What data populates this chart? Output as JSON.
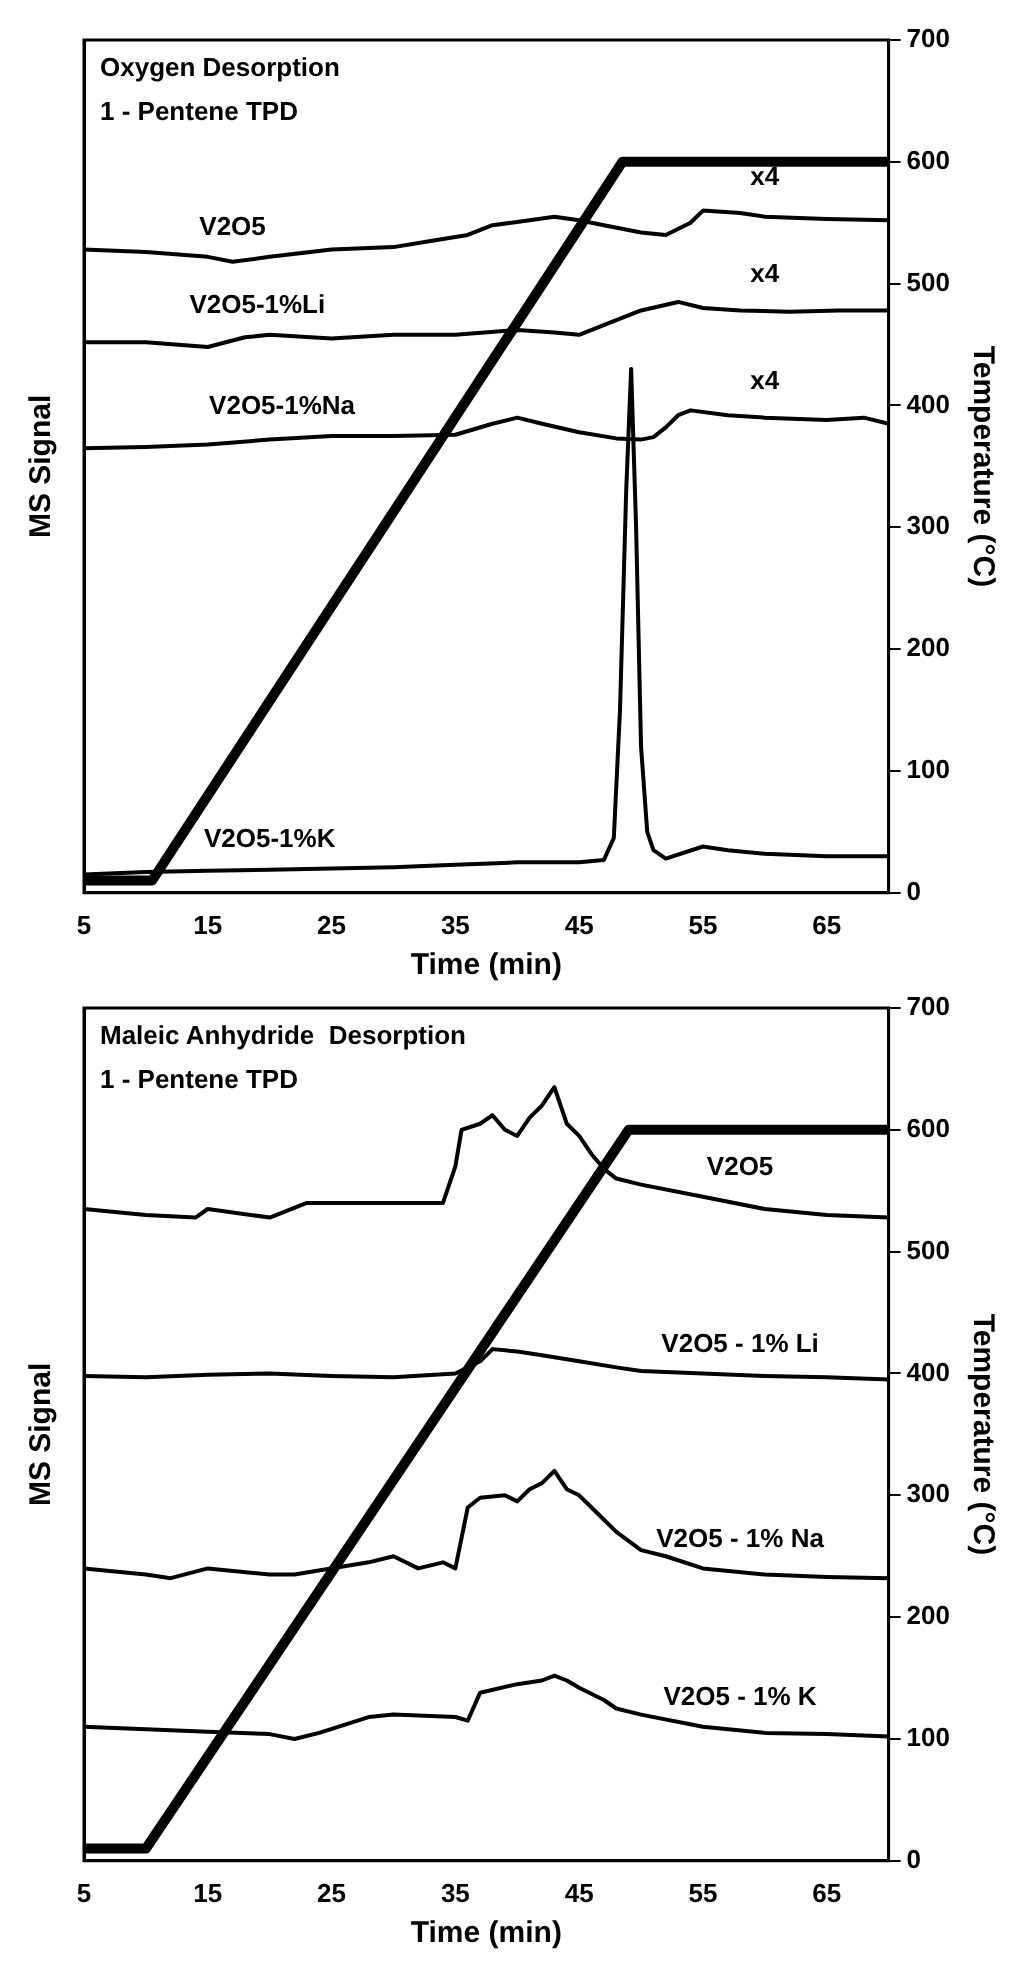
{
  "chart_data": [
    {
      "type": "line",
      "title": "Oxygen Desorption",
      "subtitle": "1 - Pentene TPD",
      "xlabel": "Time (min)",
      "ylabel": "MS Signal",
      "y2label": "Temperature (°C)",
      "xlim": [
        5,
        70
      ],
      "xticks": [
        5,
        15,
        25,
        35,
        45,
        55,
        65
      ],
      "y2lim": [
        0,
        700
      ],
      "y2ticks": [
        0,
        100,
        200,
        300,
        400,
        500,
        600,
        700
      ],
      "grid": false,
      "legend": false,
      "marker": "none",
      "annotations": [
        "x4",
        "x4",
        "x4"
      ],
      "series": [
        {
          "name": "V2O5",
          "color": "#000000",
          "axis": "y2",
          "x": [
            5,
            10,
            15,
            17,
            20,
            25,
            30,
            33,
            36,
            38,
            41,
            43,
            45,
            47,
            50,
            52,
            54,
            55,
            58,
            60,
            65,
            70
          ],
          "values": [
            528,
            526,
            522,
            518,
            522,
            528,
            530,
            535,
            540,
            548,
            552,
            555,
            552,
            548,
            542,
            540,
            550,
            560,
            558,
            555,
            553,
            552
          ]
        },
        {
          "name": "V2O5-1%Li",
          "color": "#000000",
          "axis": "y2",
          "x": [
            5,
            10,
            15,
            18,
            20,
            25,
            30,
            35,
            40,
            43,
            45,
            48,
            50,
            53,
            55,
            58,
            62,
            66,
            70
          ],
          "values": [
            452,
            452,
            448,
            456,
            458,
            455,
            458,
            458,
            462,
            460,
            458,
            470,
            478,
            485,
            480,
            478,
            477,
            478,
            478
          ]
        },
        {
          "name": "V2O5-1%Na",
          "color": "#000000",
          "axis": "y2",
          "x": [
            5,
            10,
            15,
            20,
            25,
            30,
            35,
            38,
            40,
            42,
            45,
            48,
            50,
            51,
            52,
            53,
            54,
            57,
            60,
            65,
            68,
            70
          ],
          "values": [
            365,
            366,
            368,
            372,
            375,
            375,
            376,
            385,
            390,
            385,
            378,
            373,
            372,
            374,
            382,
            392,
            396,
            392,
            390,
            388,
            390,
            385
          ]
        },
        {
          "name": "V2O5-1%K",
          "color": "#000000",
          "axis": "y2",
          "x": [
            5,
            10,
            15,
            20,
            25,
            30,
            35,
            40,
            45,
            47,
            47.8,
            48.3,
            48.8,
            49.2,
            49.6,
            50,
            50.5,
            51,
            52,
            55,
            57,
            60,
            65,
            70
          ],
          "values": [
            15,
            17,
            18,
            19,
            20,
            21,
            23,
            25,
            25,
            27,
            45,
            150,
            330,
            430,
            300,
            120,
            50,
            35,
            28,
            38,
            35,
            32,
            30,
            30
          ]
        },
        {
          "color": "#000000",
          "axis": "y2",
          "x": [
            5,
            10.5,
            48.5,
            70
          ],
          "values": [
            10,
            10,
            600,
            600
          ]
        }
      ]
    },
    {
      "type": "line",
      "title": "Maleic Anhydride  Desorption",
      "subtitle": "1 - Pentene TPD",
      "xlabel": "Time (min)",
      "ylabel": "MS Signal",
      "y2label": "Temperature (°C)",
      "xlim": [
        5,
        70
      ],
      "xticks": [
        5,
        15,
        25,
        35,
        45,
        55,
        65
      ],
      "y2lim": [
        0,
        700
      ],
      "y2ticks": [
        0,
        100,
        200,
        300,
        400,
        500,
        600,
        700
      ],
      "grid": false,
      "legend": false,
      "marker": "none",
      "series": [
        {
          "name": "V2O5",
          "color": "#000000",
          "axis": "y2",
          "x": [
            5,
            10,
            14,
            15,
            20,
            23,
            28,
            34,
            35,
            35.5,
            37,
            38,
            39,
            40,
            41,
            42,
            43,
            44,
            45,
            46,
            47,
            48,
            50,
            55,
            60,
            65,
            70
          ],
          "values": [
            535,
            530,
            528,
            535,
            528,
            540,
            540,
            540,
            570,
            600,
            605,
            612,
            600,
            595,
            610,
            620,
            635,
            605,
            595,
            580,
            568,
            560,
            555,
            545,
            535,
            530,
            528
          ]
        },
        {
          "name": "V2O5 - 1% Li",
          "color": "#000000",
          "axis": "y2",
          "x": [
            5,
            10,
            15,
            20,
            25,
            30,
            35,
            37,
            38,
            40,
            42,
            45,
            48,
            50,
            55,
            60,
            65,
            70
          ],
          "values": [
            398,
            397,
            399,
            400,
            398,
            397,
            400,
            410,
            420,
            418,
            415,
            410,
            405,
            402,
            400,
            398,
            397,
            395
          ]
        },
        {
          "name": "V2O5 - 1% Na",
          "color": "#000000",
          "axis": "y2",
          "x": [
            5,
            10,
            12,
            15,
            20,
            22,
            28,
            30,
            32,
            34,
            35,
            36,
            37,
            39,
            40,
            41,
            42,
            43,
            44,
            45,
            46,
            48,
            50,
            52,
            55,
            60,
            65,
            70
          ],
          "values": [
            240,
            235,
            232,
            240,
            235,
            235,
            245,
            250,
            240,
            245,
            240,
            290,
            298,
            300,
            295,
            305,
            310,
            320,
            305,
            300,
            290,
            270,
            255,
            250,
            240,
            235,
            233,
            232
          ]
        },
        {
          "name": "V2O5 - 1% K",
          "color": "#000000",
          "axis": "y2",
          "x": [
            5,
            10,
            15,
            20,
            22,
            24,
            28,
            30,
            35,
            36,
            37,
            40,
            42,
            43,
            44,
            45,
            47,
            48,
            50,
            55,
            60,
            65,
            70
          ],
          "values": [
            110,
            108,
            106,
            104,
            100,
            105,
            118,
            120,
            118,
            115,
            138,
            145,
            148,
            152,
            148,
            142,
            132,
            125,
            120,
            110,
            105,
            104,
            102
          ]
        },
        {
          "color": "#000000",
          "axis": "y2",
          "x": [
            5,
            10,
            49,
            70
          ],
          "values": [
            10,
            10,
            600,
            600
          ]
        }
      ]
    }
  ]
}
